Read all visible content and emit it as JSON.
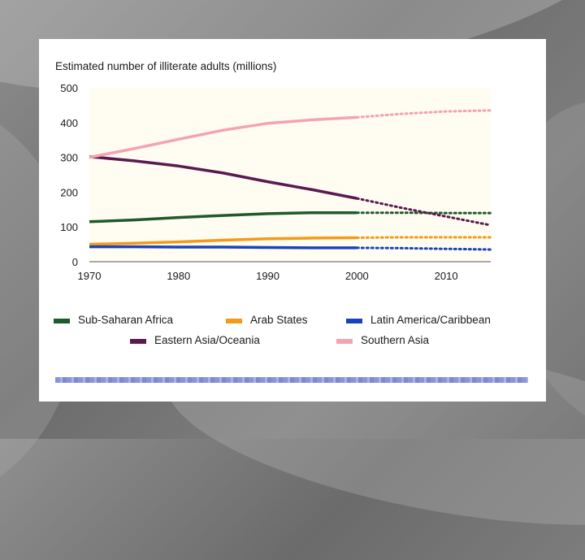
{
  "chart_data": {
    "type": "line",
    "title": "Estimated number of illiterate adults (millions)",
    "xlabel": "",
    "ylabel": "",
    "x_ticks": [
      1970,
      1980,
      1990,
      2000,
      2010
    ],
    "y_ticks": [
      0,
      100,
      200,
      300,
      400,
      500
    ],
    "xlim": [
      1970,
      2015
    ],
    "ylim": [
      0,
      500
    ],
    "grid": false,
    "legend_placement": "bottom",
    "projection_start": 2000,
    "series": [
      {
        "name": "Sub-Saharan Africa",
        "color": "#1f5a2a",
        "x": [
          1970,
          1975,
          1980,
          1985,
          1990,
          1995,
          2000,
          2005,
          2010,
          2015
        ],
        "values": [
          115,
          120,
          127,
          133,
          138,
          141,
          141,
          141,
          140,
          140
        ]
      },
      {
        "name": "Arab States",
        "color": "#f39a1a",
        "x": [
          1970,
          1975,
          1980,
          1985,
          1990,
          1995,
          2000,
          2005,
          2010,
          2015
        ],
        "values": [
          50,
          53,
          57,
          62,
          66,
          68,
          69,
          70,
          70,
          70
        ]
      },
      {
        "name": "Latin America/Caribbean",
        "color": "#1a44b8",
        "x": [
          1970,
          1975,
          1980,
          1985,
          1990,
          1995,
          2000,
          2005,
          2010,
          2015
        ],
        "values": [
          43,
          43,
          42,
          42,
          41,
          40,
          40,
          39,
          37,
          35
        ]
      },
      {
        "name": "Eastern Asia/Oceania",
        "color": "#5a1a4e",
        "x": [
          1970,
          1975,
          1980,
          1985,
          1990,
          1995,
          2000,
          2005,
          2010,
          2015
        ],
        "values": [
          302,
          290,
          275,
          255,
          230,
          207,
          182,
          155,
          130,
          105
        ]
      },
      {
        "name": "Southern Asia",
        "color": "#f4a3b4",
        "x": [
          1970,
          1975,
          1980,
          1985,
          1990,
          1995,
          2000,
          2005,
          2010,
          2015
        ],
        "values": [
          300,
          325,
          352,
          378,
          398,
          408,
          415,
          425,
          432,
          435
        ]
      }
    ]
  }
}
